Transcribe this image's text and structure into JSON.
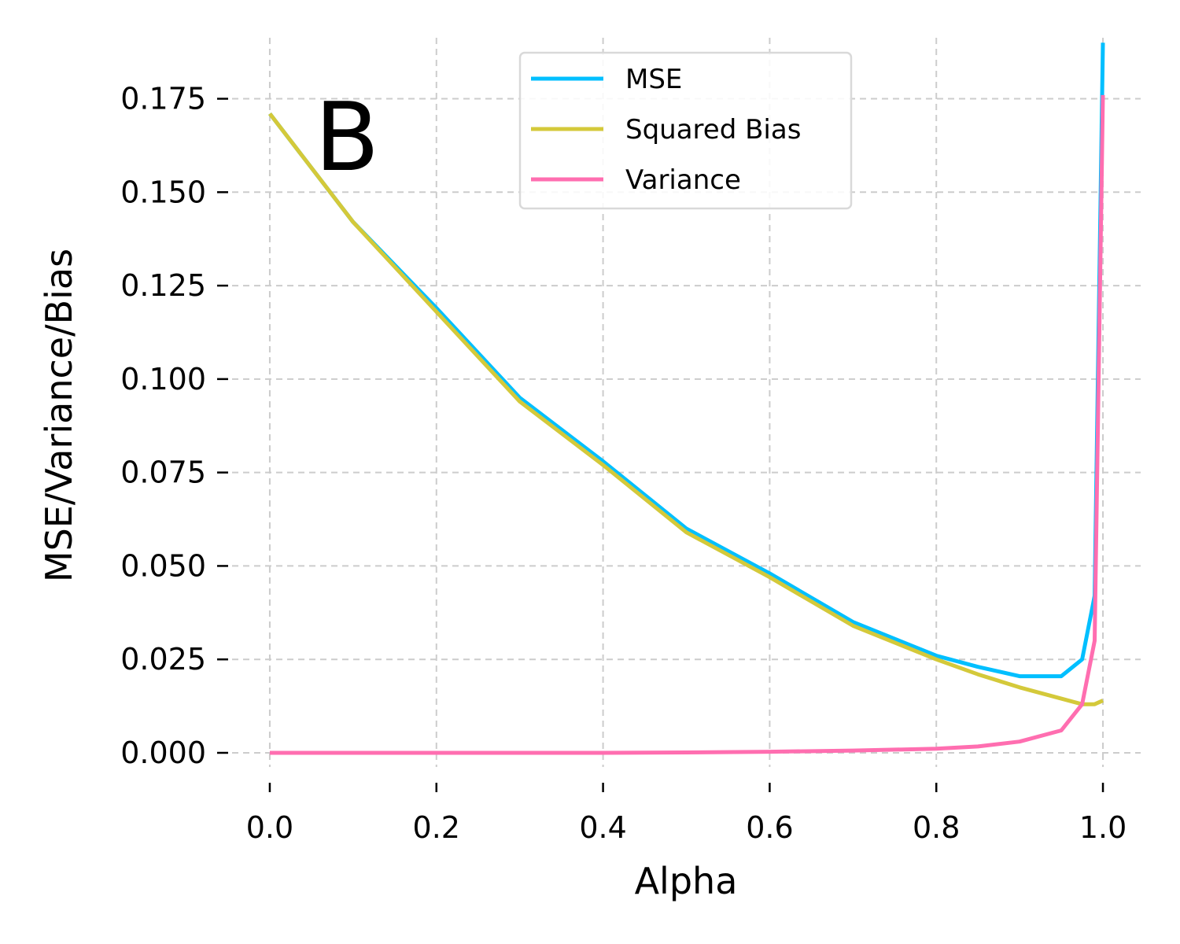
{
  "chart_data": {
    "type": "line",
    "panel_label": "B",
    "xlabel": "Alpha",
    "ylabel": "MSE/Variance/Bias",
    "xlim": [
      -0.05,
      1.05
    ],
    "ylim": [
      -0.008,
      0.193
    ],
    "xticks": [
      0.0,
      0.2,
      0.4,
      0.6,
      0.8,
      1.0
    ],
    "xtick_labels": [
      "0.0",
      "0.2",
      "0.4",
      "0.6",
      "0.8",
      "1.0"
    ],
    "yticks": [
      0.0,
      0.025,
      0.05,
      0.075,
      0.1,
      0.125,
      0.15,
      0.175
    ],
    "ytick_labels": [
      "0.000",
      "0.025",
      "0.050",
      "0.075",
      "0.100",
      "0.125",
      "0.150",
      "0.175"
    ],
    "grid": true,
    "legend_position": "top-center",
    "x": [
      0.0,
      0.1,
      0.2,
      0.3,
      0.4,
      0.5,
      0.6,
      0.7,
      0.8,
      0.85,
      0.9,
      0.95,
      0.975,
      0.99,
      1.0
    ],
    "series": [
      {
        "name": "MSE",
        "color": "#00bfff",
        "values": [
          0.171,
          0.142,
          0.119,
          0.095,
          0.078,
          0.06,
          0.048,
          0.035,
          0.026,
          0.023,
          0.0205,
          0.0205,
          0.025,
          0.042,
          0.19
        ]
      },
      {
        "name": "Squared Bias",
        "color": "#d4c93a",
        "values": [
          0.171,
          0.142,
          0.118,
          0.094,
          0.077,
          0.059,
          0.047,
          0.034,
          0.025,
          0.021,
          0.0175,
          0.0145,
          0.013,
          0.013,
          0.014
        ]
      },
      {
        "name": "Variance",
        "color": "#ff6eb0",
        "values": [
          0.0,
          0.0,
          0.0,
          0.0,
          0.0,
          0.0001,
          0.0003,
          0.0006,
          0.0011,
          0.0017,
          0.003,
          0.006,
          0.013,
          0.03,
          0.176
        ]
      }
    ]
  }
}
